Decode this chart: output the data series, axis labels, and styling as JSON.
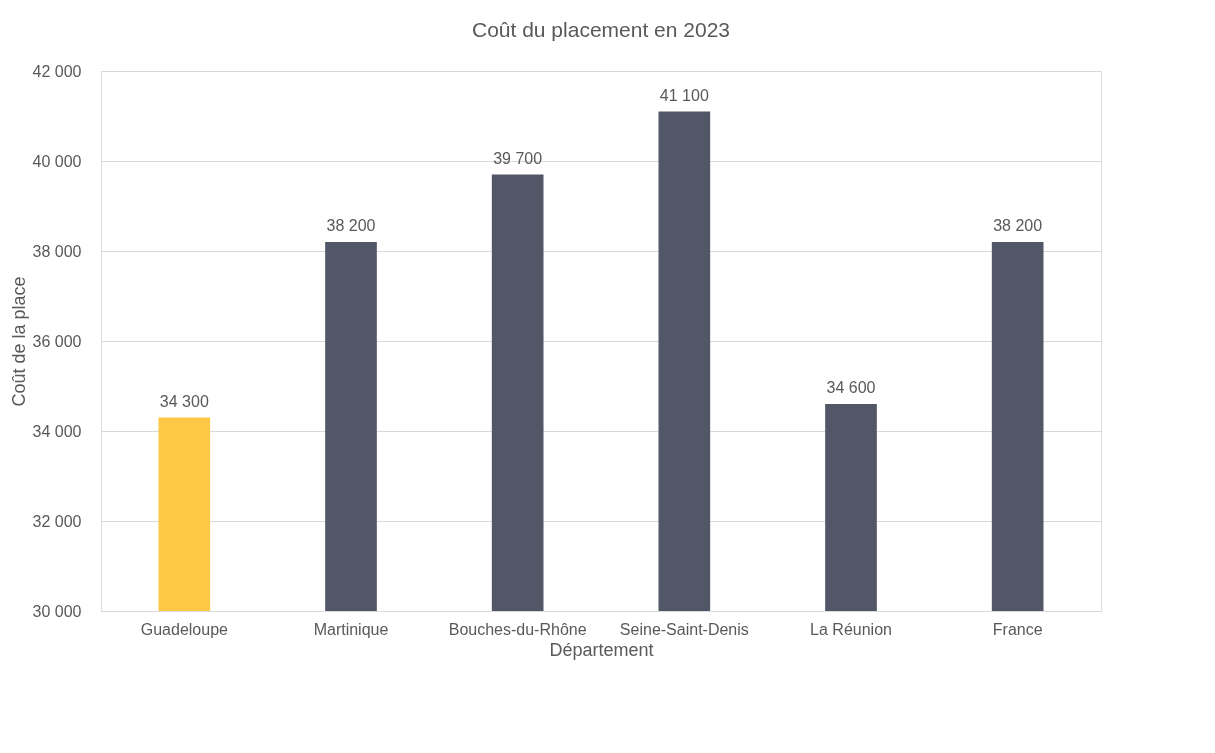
{
  "chart_data": {
    "type": "bar",
    "title": "Coût du placement en 2023",
    "xlabel": "Département",
    "ylabel": "Coût de la place",
    "categories": [
      "Guadeloupe",
      "Martinique",
      "Bouches-du-Rhône",
      "Seine-Saint-Denis",
      "La Réunion",
      "France"
    ],
    "values": [
      34300,
      38200,
      39700,
      41100,
      34600,
      38200
    ],
    "colors": [
      "#fdc846",
      "#515766",
      "#515766",
      "#515766",
      "#515766",
      "#515766"
    ],
    "value_labels": [
      "34 300",
      "38 200",
      "39 700",
      "41 100",
      "34 600",
      "38 200"
    ],
    "ylim": [
      30000,
      42000
    ],
    "yticks": [
      {
        "value": 30000,
        "label": "30 000"
      },
      {
        "value": 32000,
        "label": "32 000"
      },
      {
        "value": 34000,
        "label": "34 000"
      },
      {
        "value": 36000,
        "label": "36 000"
      },
      {
        "value": 38000,
        "label": "38 000"
      },
      {
        "value": 40000,
        "label": "40 000"
      },
      {
        "value": 42000,
        "label": "42 000"
      }
    ],
    "grid": "y"
  }
}
